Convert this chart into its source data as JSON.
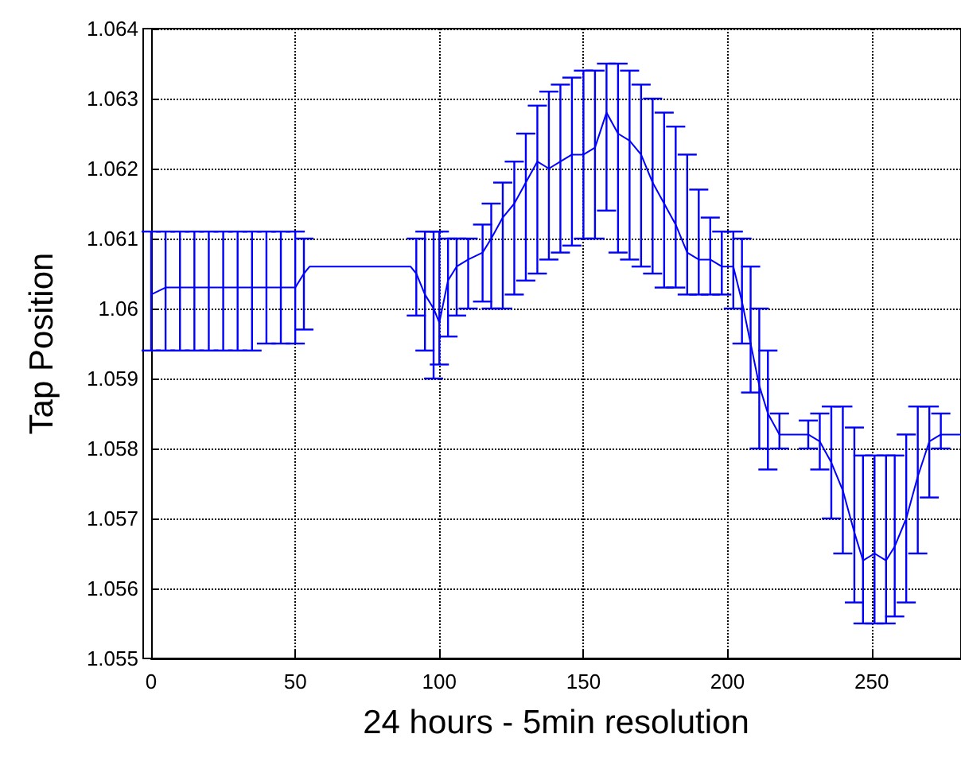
{
  "chart_data": {
    "type": "line",
    "xlabel": "24 hours - 5min resolution",
    "ylabel": "Tap Position",
    "xlim": [
      0,
      281
    ],
    "xticks": [
      0,
      50,
      100,
      150,
      200,
      250
    ],
    "ylim": [
      1.055,
      1.064
    ],
    "yticks": [
      1.055,
      1.056,
      1.057,
      1.058,
      1.059,
      1.06,
      1.061,
      1.062,
      1.063,
      1.064
    ],
    "grid": true,
    "marker": "none",
    "line_style": "solid",
    "series": [
      {
        "color": "#0000ff",
        "x": [
          0,
          5,
          10,
          15,
          20,
          25,
          30,
          35,
          40,
          45,
          50,
          53,
          55,
          70,
          90,
          92,
          95,
          98,
          100,
          103,
          106,
          110,
          115,
          118,
          122,
          126,
          130,
          134,
          138,
          142,
          146,
          150,
          154,
          158,
          162,
          166,
          170,
          174,
          178,
          182,
          186,
          190,
          194,
          198,
          202,
          205,
          208,
          211,
          214,
          218,
          222,
          228,
          232,
          236,
          240,
          244,
          247,
          251,
          255,
          258,
          262,
          266,
          270,
          274,
          278,
          281
        ],
        "values": [
          1.0602,
          1.0603,
          1.0603,
          1.0603,
          1.0603,
          1.0603,
          1.0603,
          1.0603,
          1.0603,
          1.0603,
          1.0603,
          1.0605,
          1.0606,
          1.0606,
          1.0606,
          1.0605,
          1.0602,
          1.06,
          1.0598,
          1.0604,
          1.0606,
          1.0607,
          1.0608,
          1.061,
          1.0613,
          1.0615,
          1.0618,
          1.0621,
          1.062,
          1.0621,
          1.0622,
          1.0622,
          1.0623,
          1.0628,
          1.0625,
          1.0624,
          1.0622,
          1.0618,
          1.0615,
          1.0612,
          1.0608,
          1.0607,
          1.0607,
          1.0606,
          1.0606,
          1.0601,
          1.0595,
          1.0589,
          1.0585,
          1.0582,
          1.0582,
          1.0582,
          1.0581,
          1.0578,
          1.0574,
          1.0568,
          1.0564,
          1.0565,
          1.0564,
          1.0566,
          1.057,
          1.0576,
          1.0581,
          1.0582,
          1.0582,
          1.0582
        ],
        "errors": [
          [
            1.0594,
            1.0611
          ],
          [
            1.0594,
            1.0611
          ],
          [
            1.0594,
            1.0611
          ],
          [
            1.0594,
            1.0611
          ],
          [
            1.0594,
            1.0611
          ],
          [
            1.0594,
            1.0611
          ],
          [
            1.0594,
            1.0611
          ],
          [
            1.0594,
            1.0611
          ],
          [
            1.0595,
            1.0611
          ],
          [
            1.0595,
            1.0611
          ],
          [
            1.0595,
            1.0611
          ],
          [
            1.0597,
            1.061
          ],
          null,
          null,
          null,
          [
            1.0599,
            1.061
          ],
          [
            1.0594,
            1.0611
          ],
          [
            1.059,
            1.0611
          ],
          [
            1.0592,
            1.0611
          ],
          [
            1.0596,
            1.061
          ],
          [
            1.0599,
            1.061
          ],
          [
            1.06,
            1.061
          ],
          [
            1.0601,
            1.0612
          ],
          [
            1.06,
            1.0615
          ],
          [
            1.06,
            1.0618
          ],
          [
            1.0602,
            1.0621
          ],
          [
            1.0604,
            1.0625
          ],
          [
            1.0605,
            1.0629
          ],
          [
            1.0607,
            1.0631
          ],
          [
            1.0608,
            1.0632
          ],
          [
            1.0609,
            1.0633
          ],
          [
            1.061,
            1.0634
          ],
          [
            1.061,
            1.0634
          ],
          [
            1.0614,
            1.0635
          ],
          [
            1.0608,
            1.0635
          ],
          [
            1.0607,
            1.0634
          ],
          [
            1.0606,
            1.0632
          ],
          [
            1.0605,
            1.063
          ],
          [
            1.0603,
            1.0628
          ],
          [
            1.0603,
            1.0626
          ],
          [
            1.0602,
            1.0622
          ],
          [
            1.0602,
            1.0617
          ],
          [
            1.0602,
            1.0613
          ],
          [
            1.0602,
            1.0611
          ],
          [
            1.06,
            1.0611
          ],
          [
            1.0595,
            1.061
          ],
          [
            1.0588,
            1.0606
          ],
          [
            1.058,
            1.06
          ],
          [
            1.0577,
            1.0594
          ],
          [
            1.058,
            1.0585
          ],
          null,
          [
            1.058,
            1.0584
          ],
          [
            1.0577,
            1.0585
          ],
          [
            1.057,
            1.0586
          ],
          [
            1.0565,
            1.0586
          ],
          [
            1.0558,
            1.0583
          ],
          [
            1.0555,
            1.0579
          ],
          [
            1.0555,
            1.0579
          ],
          [
            1.0555,
            1.0579
          ],
          [
            1.0556,
            1.0579
          ],
          [
            1.0558,
            1.0582
          ],
          [
            1.0565,
            1.0586
          ],
          [
            1.0573,
            1.0586
          ],
          [
            1.058,
            1.0585
          ],
          null,
          null
        ]
      }
    ]
  }
}
